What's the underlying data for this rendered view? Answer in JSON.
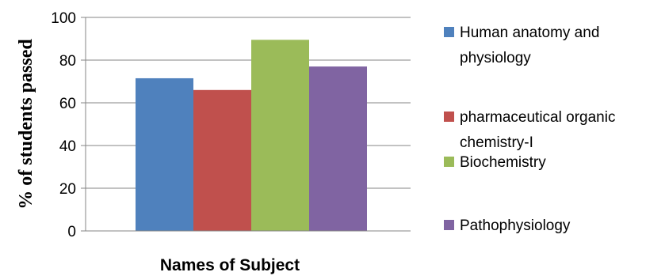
{
  "chart_data": {
    "type": "bar",
    "title": "",
    "xlabel": "Names of Subject",
    "ylabel": "% of students passed",
    "ylim": [
      0,
      100
    ],
    "yticks": [
      "0",
      "20",
      "40",
      "60",
      "80",
      "100"
    ],
    "grid": true,
    "legend_position": "right",
    "series": [
      {
        "name": "Human anatomy and physiology",
        "legend_lines": [
          "Human anatomy and",
          "physiology"
        ],
        "value": 71.5,
        "color": "#4f81bd"
      },
      {
        "name": "pharmaceutical organic chemistry-I",
        "legend_lines": [
          "pharmaceutical organic",
          "chemistry-I"
        ],
        "value": 66,
        "color": "#c0504d"
      },
      {
        "name": "Biochemistry",
        "legend_lines": [
          "Biochemistry"
        ],
        "value": 89.5,
        "color": "#9bbb59"
      },
      {
        "name": "Pathophysiology",
        "legend_lines": [
          "Pathophysiology"
        ],
        "value": 77,
        "color": "#8064a2"
      }
    ]
  }
}
